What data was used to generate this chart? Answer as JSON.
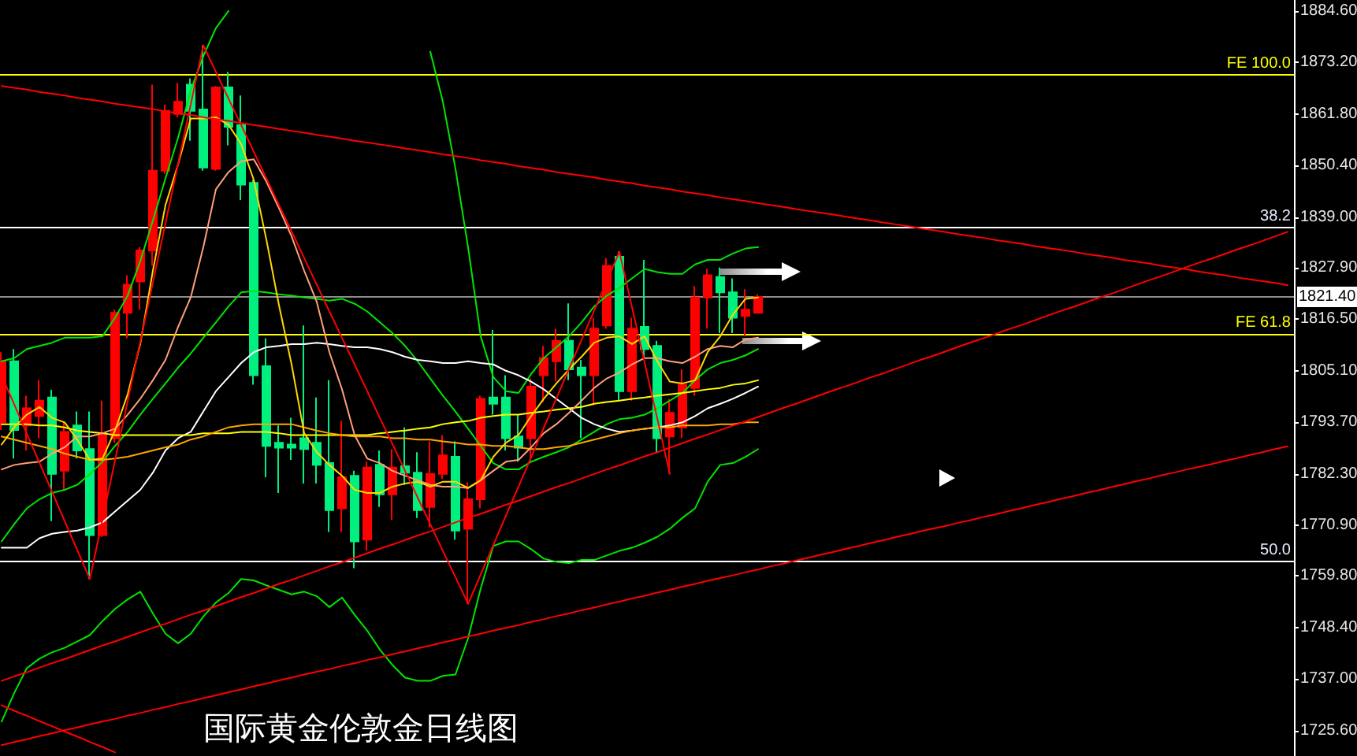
{
  "chart_data": {
    "type": "candlestick",
    "title": "国际黄金伦敦金日线图",
    "categories": [
      null,
      null,
      null,
      null,
      null,
      null,
      null,
      null,
      null,
      null,
      null,
      null,
      null,
      null,
      null,
      null,
      null,
      null,
      null,
      null,
      null,
      null,
      null,
      null,
      null,
      null,
      null,
      null,
      null,
      null,
      null,
      null,
      null,
      null,
      null,
      null,
      null,
      null,
      null,
      null,
      null,
      null,
      null,
      null,
      null,
      null,
      null,
      null,
      null,
      null,
      null,
      null,
      null,
      null,
      null,
      null,
      null,
      null,
      null,
      null,
      null,
      null,
      null,
      null,
      null,
      null,
      null,
      null,
      null,
      null,
      null,
      null,
      null,
      null,
      null,
      null,
      null,
      null,
      null,
      null,
      null,
      null,
      null,
      null,
      null,
      null,
      null,
      null,
      null,
      null,
      null,
      null,
      null,
      null,
      null,
      null,
      null,
      null,
      null,
      null,
      null,
      null,
      null
    ],
    "ohlc": [
      [
        1793.7,
        1809.2,
        1792.0,
        1807.2
      ],
      [
        1807.2,
        1809.9,
        1785.7,
        1792.0
      ],
      [
        1793.0,
        1799.6,
        1787.5,
        1796.8
      ],
      [
        1795.1,
        1803.0,
        1790.2,
        1798.5
      ],
      [
        1799.2,
        1800.9,
        1771.9,
        1782.3
      ],
      [
        1783.0,
        1793.7,
        1778.8,
        1791.6
      ],
      [
        1793.0,
        1796.1,
        1785.7,
        1787.5
      ],
      [
        1787.8,
        1796.1,
        1759.1,
        1768.8
      ],
      [
        1768.8,
        1798.5,
        1768.4,
        1791.3
      ],
      [
        1790.2,
        1818.6,
        1789.2,
        1817.9
      ],
      [
        1817.9,
        1826.2,
        1812.3,
        1824.1
      ],
      [
        1824.8,
        1832.4,
        1818.6,
        1831.7
      ],
      [
        1831.7,
        1868.3,
        1828.3,
        1849.3
      ],
      [
        1849.3,
        1863.9,
        1848.6,
        1862.5
      ],
      [
        1861.8,
        1868.7,
        1861.1,
        1864.5
      ],
      [
        1868.3,
        1869.7,
        1855.9,
        1862.5
      ],
      [
        1862.8,
        1877.0,
        1849.3,
        1850.0
      ],
      [
        1849.7,
        1868.0,
        1849.3,
        1867.7
      ],
      [
        1867.7,
        1871.1,
        1854.9,
        1859.0
      ],
      [
        1859.4,
        1865.9,
        1842.8,
        1846.2
      ],
      [
        1846.6,
        1847.3,
        1802.0,
        1804.1
      ],
      [
        1806.1,
        1812.3,
        1781.6,
        1788.5
      ],
      [
        1789.2,
        1793.0,
        1778.1,
        1788.1
      ],
      [
        1788.8,
        1794.7,
        1785.4,
        1788.1
      ],
      [
        1790.2,
        1815.1,
        1780.2,
        1787.8
      ],
      [
        1789.2,
        1799.2,
        1780.2,
        1784.3
      ],
      [
        1784.7,
        1803.0,
        1769.5,
        1774.3
      ],
      [
        1774.7,
        1794.0,
        1769.5,
        1781.6
      ],
      [
        1781.9,
        1783.0,
        1761.5,
        1767.4
      ],
      [
        1767.8,
        1785.0,
        1765.3,
        1783.7
      ],
      [
        1784.3,
        1787.5,
        1775.0,
        1777.8
      ],
      [
        1777.8,
        1787.8,
        1772.2,
        1783.7
      ],
      [
        1784.0,
        1792.6,
        1779.9,
        1782.6
      ],
      [
        1782.6,
        1787.1,
        1772.6,
        1774.3
      ],
      [
        1775.0,
        1789.5,
        1770.5,
        1782.3
      ],
      [
        1782.3,
        1790.9,
        1781.2,
        1786.4
      ],
      [
        1786.1,
        1789.5,
        1767.8,
        1769.8
      ],
      [
        1770.2,
        1780.5,
        1753.6,
        1776.7
      ],
      [
        1776.7,
        1799.6,
        1774.7,
        1798.9
      ],
      [
        1799.2,
        1814.1,
        1795.4,
        1797.8
      ],
      [
        1799.2,
        1804.1,
        1787.5,
        1790.2
      ],
      [
        1790.6,
        1795.4,
        1785.0,
        1788.1
      ],
      [
        1790.2,
        1803.4,
        1785.0,
        1801.6
      ],
      [
        1804.1,
        1810.6,
        1798.2,
        1807.9
      ],
      [
        1807.2,
        1814.4,
        1802.7,
        1811.7
      ],
      [
        1811.7,
        1820.0,
        1803.0,
        1805.4
      ],
      [
        1805.8,
        1807.5,
        1790.2,
        1804.1
      ],
      [
        1804.1,
        1816.8,
        1797.5,
        1814.4
      ],
      [
        1815.1,
        1830.0,
        1814.4,
        1828.3
      ],
      [
        1830.3,
        1831.4,
        1798.5,
        1800.6
      ],
      [
        1800.6,
        1816.8,
        1798.5,
        1814.4
      ],
      [
        1814.8,
        1829.6,
        1807.5,
        1809.9
      ],
      [
        1810.6,
        1811.7,
        1787.1,
        1790.2
      ],
      [
        1790.6,
        1798.9,
        1782.3,
        1795.8
      ],
      [
        1792.6,
        1805.4,
        1790.2,
        1802.0
      ],
      [
        1801.3,
        1823.8,
        1799.6,
        1821.3
      ],
      [
        1821.3,
        1827.6,
        1814.4,
        1826.2
      ],
      [
        1825.8,
        1827.9,
        1813.4,
        1822.4
      ],
      [
        1822.4,
        1825.5,
        1813.4,
        1816.8
      ],
      [
        1817.2,
        1823.1,
        1812.7,
        1818.6
      ],
      [
        1817.9,
        1822.0,
        1817.9,
        1821.4
      ],
      null,
      null,
      null,
      null,
      null,
      null,
      null,
      null,
      null,
      null,
      null,
      null,
      null,
      null,
      null,
      null,
      null,
      null,
      null,
      null,
      null,
      null,
      null,
      null,
      null,
      null,
      null,
      null,
      null,
      null,
      null,
      null,
      null,
      null,
      null,
      null,
      null,
      null,
      null,
      null,
      null,
      null
    ],
    "colors": [
      "#ff0000",
      "#00f080",
      "#ff0000",
      "#ff0000",
      "#00f080",
      "#ff0000",
      "#00f080",
      "#00f080",
      "#ff0000",
      "#ff0000",
      "#ff0000",
      "#ff0000",
      "#ff0000",
      "#ff0000",
      "#ff0000",
      "#00f080",
      "#00f080",
      "#ff0000",
      "#00f080",
      "#00f080",
      "#00f080",
      "#00f080",
      "#00f080",
      "#00f080",
      "#00f080",
      "#00f080",
      "#00f080",
      "#ff0000",
      "#00f080",
      "#ff0000",
      "#00f080",
      "#ff0000",
      "#00f080",
      "#00f080",
      "#ff0000",
      "#ff0000",
      "#00f080",
      "#ff0000",
      "#ff0000",
      "#00f080",
      "#00f080",
      "#00f080",
      "#ff0000",
      "#ff0000",
      "#ff0000",
      "#00f080",
      "#00f080",
      "#ff0000",
      "#ff0000",
      "#00f080",
      "#ff0000",
      "#00f080",
      "#00f080",
      "#ff0000",
      "#ff0000",
      "#ff0000",
      "#ff0000",
      "#00f080",
      "#00f080",
      "#ff0000",
      "#ff0000",
      null,
      null,
      null,
      null,
      null,
      null,
      null,
      null,
      null,
      null,
      null,
      null,
      null,
      null,
      null,
      null,
      null,
      null,
      null,
      null,
      null,
      null,
      null,
      null,
      null,
      null,
      null,
      null,
      null,
      null,
      null,
      null,
      null,
      null,
      null,
      null,
      null,
      null,
      null,
      null,
      null,
      null
    ],
    "ylim": [
      1720.0,
      1887.0
    ],
    "yticks": [
      {
        "value": 1884.6,
        "label": "1884.60"
      },
      {
        "value": 1873.2,
        "label": "1873.20"
      },
      {
        "value": 1861.8,
        "label": "1861.80"
      },
      {
        "value": 1850.4,
        "label": "1850.40"
      },
      {
        "value": 1839.0,
        "label": "1839.00"
      },
      {
        "value": 1827.9,
        "label": "1827.90"
      },
      {
        "value": 1816.5,
        "label": "1816.50"
      },
      {
        "value": 1805.1,
        "label": "1805.10"
      },
      {
        "value": 1793.7,
        "label": "1793.70"
      },
      {
        "value": 1782.3,
        "label": "1782.30"
      },
      {
        "value": 1770.9,
        "label": "1770.90"
      },
      {
        "value": 1759.8,
        "label": "1759.80"
      },
      {
        "value": 1748.4,
        "label": "1748.40"
      },
      {
        "value": 1737.0,
        "label": "1737.00"
      },
      {
        "value": 1725.6,
        "label": "1725.60"
      }
    ],
    "tick_labels": "y",
    "grid": false,
    "ref_lines": [
      {
        "axis": "y",
        "value": 1870.4,
        "label": "FE 100.0",
        "color": "#ffff00"
      },
      {
        "axis": "y",
        "value": 1836.8,
        "color": "#ffffff"
      },
      {
        "axis": "y",
        "value": 1821.4,
        "label": "1821.40",
        "color": "#8c8c8c"
      },
      {
        "axis": "y",
        "value": 1813.3,
        "label": "FE 61.8",
        "color": "#ffff00"
      },
      {
        "axis": "y",
        "value": 1762.9,
        "color": "#ffffff"
      }
    ],
    "annotations": [
      {
        "text": "38.2",
        "y": 1836.8
      },
      {
        "text": "50.0",
        "y": 1762.9
      }
    ],
    "series": [
      {
        "type": "line",
        "color": "#00e600",
        "values": [
          1807.2,
          1807.9,
          1809.9,
          1810.6,
          1811.3,
          1812.4,
          1812.4,
          1812.4,
          1812.7,
          1816.8,
          1821.7,
          1829.3,
          1838.3,
          1847.6,
          1856.6,
          1867.0,
          1874.6,
          1880.8,
          1884.6,
          null,
          null,
          null,
          null,
          null,
          null,
          null,
          null,
          null,
          null,
          null,
          null,
          null,
          null,
          null,
          1875.6,
          1864.5,
          1849.7,
          1832.4,
          1812.7,
          1803.7,
          1800.6,
          1800.2,
          1804.4,
          1807.9,
          1810.3,
          1812.7,
          1815.8,
          1819.3,
          1821.7,
          1823.4,
          1825.5,
          1827.6,
          1826.9,
          1826.5,
          1826.5,
          1828.6,
          1829.6,
          1829.6,
          1831.0,
          1832.1,
          1832.4,
          null,
          null,
          null,
          null,
          null,
          null,
          null,
          null,
          null,
          null,
          null,
          null,
          null,
          null,
          null,
          null,
          null,
          null,
          null,
          null,
          null,
          null,
          null,
          null,
          null,
          null,
          null,
          null,
          null,
          null,
          null,
          null,
          null,
          null,
          null,
          null,
          null,
          null,
          null,
          null,
          null,
          null
        ]
      },
      {
        "type": "line",
        "color": "#00e600",
        "values": [
          1767.4,
          1771.2,
          1774.7,
          1776.7,
          1778.1,
          1778.8,
          1779.9,
          1782.3,
          1785.0,
          1788.5,
          1791.6,
          1795.4,
          1798.9,
          1802.3,
          1805.8,
          1808.9,
          1812.4,
          1815.8,
          1819.3,
          1822.4,
          1822.7,
          1822.4,
          1822.0,
          1821.7,
          1821.3,
          1821.0,
          1820.6,
          1821.0,
          1819.9,
          1818.2,
          1815.8,
          1813.4,
          1810.6,
          1807.2,
          1803.4,
          1799.6,
          1796.1,
          1792.3,
          1788.5,
          1784.7,
          1783.3,
          1783.3,
          1785.0,
          1786.1,
          1787.1,
          1788.2,
          1789.9,
          1791.6,
          1793.3,
          1794.4,
          1794.7,
          1795.4,
          1796.8,
          1798.5,
          1800.2,
          1803.0,
          1805.4,
          1806.8,
          1807.5,
          1808.5,
          1809.9,
          null,
          null,
          null,
          null,
          null,
          null,
          null,
          null,
          null,
          null,
          null,
          null,
          null,
          null,
          null,
          null,
          null,
          null,
          null,
          null,
          null,
          null,
          null,
          null,
          null,
          null,
          null,
          null,
          null,
          null,
          null,
          null,
          null,
          null,
          null,
          null,
          null,
          null,
          null,
          null,
          null,
          null
        ]
      },
      {
        "type": "line",
        "color": "#00e600",
        "values": [
          1727.6,
          1733.9,
          1739.4,
          1741.5,
          1742.9,
          1743.9,
          1745.3,
          1746.7,
          1749.8,
          1752.5,
          1754.6,
          1756.3,
          1751.5,
          1747.0,
          1744.9,
          1747.0,
          1750.8,
          1753.9,
          1756.0,
          1759.1,
          1758.8,
          1757.7,
          1756.7,
          1755.7,
          1756.3,
          1755.3,
          1752.9,
          1755.0,
          1751.2,
          1747.7,
          1743.5,
          1740.1,
          1737.3,
          1736.6,
          1736.6,
          1737.7,
          1738.0,
          1746.0,
          1757.0,
          1766.4,
          1767.4,
          1767.4,
          1765.7,
          1763.6,
          1762.9,
          1762.6,
          1763.3,
          1763.3,
          1764.3,
          1765.3,
          1766.0,
          1767.1,
          1768.4,
          1770.2,
          1772.6,
          1774.7,
          1780.6,
          1784.3,
          1784.7,
          1786.1,
          1787.8,
          null,
          null,
          null,
          null,
          null,
          null,
          null,
          null,
          null,
          null,
          null,
          null,
          null,
          null,
          null,
          null,
          null,
          null,
          null,
          null,
          null,
          null,
          null,
          null,
          null,
          null,
          null,
          null,
          null,
          null,
          null,
          null,
          null,
          null,
          null,
          null,
          null,
          null,
          null,
          null,
          null,
          null
        ]
      },
      {
        "type": "line",
        "color": "#ffffff",
        "values": [
          1766.0,
          1766.0,
          1766.0,
          1768.1,
          1769.1,
          1769.5,
          1769.8,
          1770.5,
          1771.6,
          1774.0,
          1776.4,
          1778.8,
          1782.6,
          1787.5,
          1790.2,
          1791.6,
          1796.1,
          1800.6,
          1803.7,
          1806.8,
          1809.2,
          1810.3,
          1810.6,
          1811.0,
          1811.0,
          1811.3,
          1811.0,
          1810.6,
          1810.3,
          1810.3,
          1809.9,
          1809.2,
          1808.2,
          1807.5,
          1807.2,
          1806.8,
          1806.8,
          1807.2,
          1806.8,
          1806.5,
          1805.1,
          1804.1,
          1802.7,
          1801.0,
          1798.9,
          1796.8,
          1794.7,
          1793.3,
          1792.3,
          1791.6,
          1791.9,
          1792.3,
          1792.6,
          1793.0,
          1793.7,
          1795.1,
          1796.8,
          1797.8,
          1798.9,
          1800.2,
          1801.6,
          null,
          null,
          null,
          null,
          null,
          null,
          null,
          null,
          null,
          null,
          null,
          null,
          null,
          null,
          null,
          null,
          null,
          null,
          null,
          null,
          null,
          null,
          null,
          null,
          null,
          null,
          null,
          null,
          null,
          null,
          null,
          null,
          null,
          null,
          null,
          null,
          null,
          null,
          null,
          null,
          null,
          null
        ]
      },
      {
        "type": "line",
        "color": "#ffff00",
        "values": [
          1793.3,
          1793.3,
          1793.3,
          1793.0,
          1793.0,
          1792.6,
          1791.9,
          1791.6,
          1791.3,
          1790.9,
          1790.9,
          1790.9,
          1790.9,
          1790.9,
          1790.9,
          1790.9,
          1791.3,
          1791.3,
          1791.3,
          1791.6,
          1791.6,
          1791.6,
          1791.3,
          1790.9,
          1790.9,
          1790.9,
          1790.9,
          1790.9,
          1790.9,
          1790.9,
          1791.3,
          1791.6,
          1791.9,
          1792.3,
          1792.6,
          1793.3,
          1793.7,
          1794.0,
          1794.7,
          1795.1,
          1795.4,
          1795.4,
          1795.8,
          1796.1,
          1796.5,
          1796.8,
          1797.1,
          1797.8,
          1798.2,
          1798.5,
          1798.9,
          1799.2,
          1799.6,
          1799.9,
          1800.2,
          1800.6,
          1801.0,
          1801.3,
          1802.0,
          1802.3,
          1803.0,
          null,
          null,
          null,
          null,
          null,
          null,
          null,
          null,
          null,
          null,
          null,
          null,
          null,
          null,
          null,
          null,
          null,
          null,
          null,
          null,
          null,
          null,
          null,
          null,
          null,
          null,
          null,
          null,
          null,
          null,
          null,
          null,
          null,
          null,
          null,
          null,
          null,
          null,
          null,
          null,
          null,
          null
        ]
      },
      {
        "type": "line",
        "color": "#ffa500",
        "values": [
          1790.6,
          1789.9,
          1789.2,
          1788.5,
          1787.8,
          1786.8,
          1786.1,
          1785.4,
          1785.4,
          1785.7,
          1786.1,
          1786.8,
          1787.5,
          1788.2,
          1788.8,
          1789.9,
          1790.6,
          1791.6,
          1792.6,
          1793.0,
          1793.3,
          1793.3,
          1793.3,
          1793.3,
          1792.6,
          1791.9,
          1791.3,
          1790.9,
          1790.6,
          1790.6,
          1790.6,
          1790.2,
          1790.2,
          1789.9,
          1789.9,
          1789.5,
          1789.2,
          1788.8,
          1788.8,
          1788.5,
          1788.5,
          1788.2,
          1787.8,
          1787.8,
          1788.2,
          1788.5,
          1789.2,
          1789.9,
          1790.6,
          1791.3,
          1791.9,
          1792.3,
          1792.6,
          1792.6,
          1793.0,
          1793.0,
          1793.0,
          1793.3,
          1793.3,
          1793.7,
          1793.7,
          null,
          null,
          null,
          null,
          null,
          null,
          null,
          null,
          null,
          null,
          null,
          null,
          null,
          null,
          null,
          null,
          null,
          null,
          null,
          null,
          null,
          null,
          null,
          null,
          null,
          null,
          null,
          null,
          null,
          null,
          null,
          null,
          null,
          null,
          null,
          null,
          null,
          null,
          null,
          null,
          null,
          null
        ]
      },
      {
        "type": "line",
        "color": "#ffa07a",
        "values": [
          1783.3,
          1784.3,
          1784.7,
          1785.0,
          1786.8,
          1788.2,
          1790.6,
          1790.6,
          1791.3,
          1792.3,
          1795.4,
          1798.9,
          1803.0,
          1807.5,
          1814.8,
          1821.3,
          1832.4,
          1845.2,
          1849.0,
          1851.4,
          1851.8,
          1846.9,
          1841.0,
          1834.8,
          1827.2,
          1820.3,
          1809.2,
          1801.0,
          1790.9,
          1785.7,
          1784.7,
          1783.0,
          1781.9,
          1780.9,
          1779.9,
          1779.5,
          1779.5,
          1779.2,
          1780.9,
          1783.0,
          1785.0,
          1785.4,
          1788.2,
          1791.3,
          1793.3,
          1795.8,
          1798.5,
          1801.3,
          1803.4,
          1804.7,
          1806.5,
          1807.9,
          1807.9,
          1807.2,
          1806.8,
          1808.2,
          1809.9,
          1810.6,
          1810.3,
          1812.0,
          1812.4,
          null,
          null,
          null,
          null,
          null,
          null,
          null,
          null,
          null,
          null,
          null,
          null,
          null,
          null,
          null,
          null,
          null,
          null,
          null,
          null,
          null,
          null,
          null,
          null,
          null,
          null,
          null,
          null,
          null,
          null,
          null,
          null,
          null,
          null,
          null,
          null,
          null,
          null,
          null,
          null,
          null,
          null
        ]
      },
      {
        "type": "line",
        "color": "#ffd700",
        "values": [
          1788.8,
          1792.6,
          1795.4,
          1797.1,
          1794.7,
          1793.7,
          1789.9,
          1785.4,
          1785.7,
          1791.9,
          1799.9,
          1811.0,
          1827.2,
          1841.7,
          1850.7,
          1860.8,
          1860.8,
          1861.1,
          1859.4,
          1855.2,
          1847.3,
          1834.1,
          1819.6,
          1806.5,
          1791.3,
          1787.1,
          1784.3,
          1781.9,
          1778.8,
          1778.1,
          1778.1,
          1779.5,
          1780.2,
          1780.6,
          1779.5,
          1780.6,
          1780.6,
          1779.2,
          1780.9,
          1786.1,
          1789.2,
          1790.9,
          1795.1,
          1798.9,
          1802.3,
          1805.4,
          1808.2,
          1811.3,
          1812.4,
          1812.7,
          1811.0,
          1812.7,
          1807.2,
          1802.7,
          1802.3,
          1803.0,
          1809.2,
          1812.7,
          1817.5,
          1821.0,
          1821.3,
          null,
          null,
          null,
          null,
          null,
          null,
          null,
          null,
          null,
          null,
          null,
          null,
          null,
          null,
          null,
          null,
          null,
          null,
          null,
          null,
          null,
          null,
          null,
          null,
          null,
          null,
          null,
          null,
          null,
          null,
          null,
          null,
          null,
          null,
          null,
          null,
          null,
          null,
          null,
          null,
          null,
          null
        ]
      },
      {
        "type": "line",
        "color": "#ff0000",
        "values": [
          1804.1,
          1797.7,
          1791.2,
          1784.8,
          1778.4,
          1771.9,
          1765.5,
          1759.1,
          1772.2,
          1785.3,
          1798.4,
          1811.5,
          1824.6,
          1837.7,
          1850.8,
          1863.9,
          1877.0,
          1871.1,
          1865.2,
          1859.4,
          1853.5,
          1847.6,
          1841.7,
          1835.9,
          1830.0,
          1824.1,
          1818.2,
          1812.4,
          1806.5,
          1800.6,
          1794.7,
          1788.9,
          1783.0,
          1777.1,
          1771.2,
          1765.3,
          1759.5,
          1753.6,
          1760.1,
          1766.6,
          1773.1,
          1779.5,
          1786.0,
          1792.5,
          1799.0,
          1805.5,
          1811.9,
          1818.4,
          1824.9,
          1831.4,
          1819.1,
          1806.9,
          1794.6,
          1782.3,
          null,
          null,
          null,
          null,
          null,
          null,
          null,
          null,
          null,
          null,
          null,
          null,
          null,
          null,
          null,
          null,
          null,
          null,
          null,
          null,
          null,
          null,
          null,
          null,
          null,
          null,
          null,
          null,
          null,
          null,
          null,
          null,
          null,
          null,
          null,
          null,
          null,
          null,
          null,
          null,
          null,
          null,
          null,
          null,
          null,
          null,
          null,
          null,
          null
        ]
      },
      {
        "type": "line",
        "color": "#ff0000",
        "values": [
          1868.0,
          1867.6,
          1867.2,
          1866.7,
          1866.3,
          1865.9,
          1865.4,
          1865.0,
          1864.6,
          1864.1,
          1863.7,
          1863.3,
          1862.9,
          1862.4,
          1862.0,
          1861.6,
          1861.1,
          1860.7,
          1860.3,
          1859.8,
          1859.4,
          1859.0,
          1858.5,
          1858.1,
          1857.7,
          1857.2,
          1856.8,
          1856.4,
          1855.9,
          1855.5,
          1855.1,
          1854.7,
          1854.2,
          1853.8,
          1853.4,
          1852.9,
          1852.5,
          1852.1,
          1851.6,
          1851.2,
          1850.8,
          1850.3,
          1849.9,
          1849.5,
          1849.0,
          1848.6,
          1848.2,
          1847.8,
          1847.3,
          1846.9,
          1846.5,
          1846.0,
          1845.6,
          1845.2,
          1844.7,
          1844.3,
          1843.9,
          1843.4,
          1843.0,
          1842.6,
          1842.1,
          1841.7,
          1841.3,
          1840.8,
          1840.4,
          1840.0,
          1839.6,
          1839.1,
          1838.7,
          1838.3,
          1837.8,
          1837.4,
          1837.0,
          1836.5,
          1836.1,
          1835.7,
          1835.2,
          1834.8,
          1834.4,
          1833.9,
          1833.5,
          1833.1,
          1832.6,
          1832.2,
          1831.8,
          1831.4,
          1830.9,
          1830.5,
          1830.1,
          1829.6,
          1829.2,
          1828.8,
          1828.3,
          1827.9,
          1827.5,
          1827.0,
          1826.6,
          1826.2,
          1825.7,
          1825.3,
          1824.9,
          1824.5,
          1824.0
        ]
      },
      {
        "type": "line",
        "color": "#ff0000",
        "values": [
          1736.6,
          1737.6,
          1738.5,
          1739.5,
          1740.5,
          1741.4,
          1742.4,
          1743.4,
          1744.4,
          1745.3,
          1746.3,
          1747.3,
          1748.3,
          1749.2,
          1750.2,
          1751.2,
          1752.1,
          1753.1,
          1754.1,
          1755.1,
          1756.0,
          1757.0,
          1758.0,
          1758.9,
          1759.9,
          1760.9,
          1761.9,
          1762.8,
          1763.8,
          1764.8,
          1765.8,
          1766.7,
          1767.7,
          1768.7,
          1769.6,
          1770.6,
          1771.6,
          1772.6,
          1773.5,
          1774.5,
          1775.5,
          1776.4,
          1777.4,
          1778.4,
          1779.4,
          1780.3,
          1781.3,
          1782.3,
          1783.3,
          1784.2,
          1785.2,
          1786.2,
          1787.1,
          1788.1,
          1789.1,
          1790.1,
          1791.0,
          1792.0,
          1793.0,
          1793.9,
          1794.9,
          1795.9,
          1796.9,
          1797.8,
          1798.8,
          1799.8,
          1800.8,
          1801.7,
          1802.7,
          1803.7,
          1804.6,
          1805.6,
          1806.6,
          1807.6,
          1808.5,
          1809.5,
          1810.5,
          1811.5,
          1812.4,
          1813.4,
          1814.4,
          1815.3,
          1816.3,
          1817.3,
          1818.3,
          1819.2,
          1820.2,
          1821.2,
          1822.1,
          1823.1,
          1824.1,
          1825.1,
          1826.0,
          1827.0,
          1828.0,
          1829.0,
          1829.9,
          1830.9,
          1831.9,
          1832.8,
          1833.8,
          1834.8,
          1835.8
        ]
      },
      {
        "type": "line",
        "color": "#ff0000",
        "values": [
          1722.4,
          1723.1,
          1723.7,
          1724.4,
          1725.0,
          1725.7,
          1726.3,
          1727.0,
          1727.6,
          1728.2,
          1728.9,
          1729.5,
          1730.2,
          1730.8,
          1731.5,
          1732.1,
          1732.8,
          1733.4,
          1734.1,
          1734.7,
          1735.4,
          1736.0,
          1736.7,
          1737.3,
          1738.0,
          1738.6,
          1739.2,
          1739.9,
          1740.5,
          1741.2,
          1741.8,
          1742.5,
          1743.1,
          1743.8,
          1744.4,
          1745.1,
          1745.7,
          1746.4,
          1747.0,
          1747.7,
          1748.3,
          1748.9,
          1749.6,
          1750.2,
          1750.9,
          1751.5,
          1752.2,
          1752.8,
          1753.5,
          1754.1,
          1754.8,
          1755.4,
          1756.1,
          1756.7,
          1757.4,
          1758.0,
          1758.7,
          1759.3,
          1759.9,
          1760.6,
          1761.2,
          1761.9,
          1762.5,
          1763.2,
          1763.8,
          1764.5,
          1765.1,
          1765.8,
          1766.4,
          1767.1,
          1767.7,
          1768.4,
          1769.0,
          1769.7,
          1770.3,
          1770.9,
          1771.6,
          1772.2,
          1772.9,
          1773.5,
          1774.2,
          1774.8,
          1775.5,
          1776.1,
          1776.8,
          1777.4,
          1778.1,
          1778.7,
          1779.4,
          1780.0,
          1780.7,
          1781.3,
          1782.0,
          1782.6,
          1783.3,
          1783.9,
          1784.5,
          1785.2,
          1785.8,
          1786.5,
          1787.1,
          1787.8,
          1788.4
        ]
      },
      {
        "type": "line",
        "color": "#ff0000",
        "values": [
          1731.2,
          1730.0,
          1728.9,
          1727.7,
          1726.6,
          1725.4,
          1724.3,
          1723.1,
          1722.0,
          1720.8,
          null,
          null,
          null,
          null,
          null,
          null,
          null,
          null,
          null,
          null,
          null,
          null,
          null,
          null,
          null,
          null,
          null,
          null,
          null,
          null,
          null,
          null,
          null,
          null,
          null,
          null,
          null,
          null,
          null,
          null,
          null,
          null,
          null,
          null,
          null,
          null,
          null,
          null,
          null,
          null,
          null,
          null,
          null,
          null,
          null,
          null,
          null,
          null,
          null,
          null,
          null,
          null,
          null,
          null,
          null,
          null,
          null,
          null,
          null,
          null,
          null,
          null,
          null,
          null,
          null,
          null,
          null,
          null,
          null,
          null,
          null,
          null,
          null,
          null,
          null,
          null,
          null,
          null,
          null,
          null,
          null,
          null,
          null,
          null,
          null,
          null,
          null,
          null,
          null,
          null,
          null,
          null,
          null
        ]
      }
    ]
  }
}
